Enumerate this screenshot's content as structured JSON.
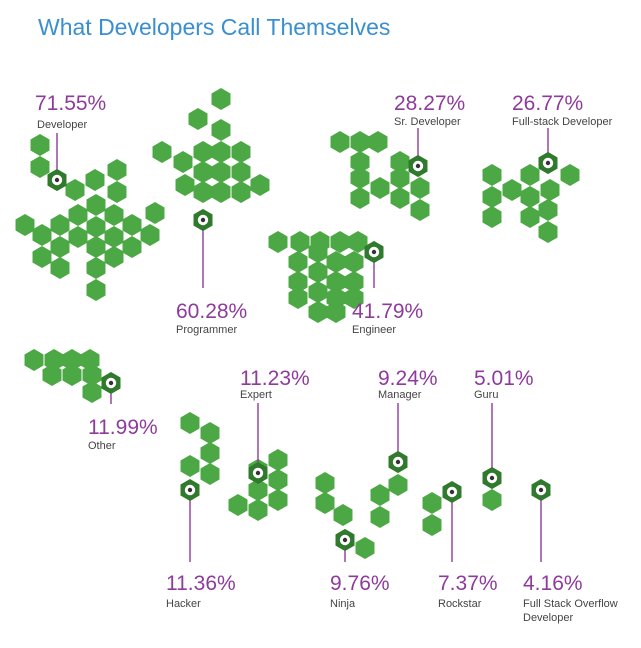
{
  "chart_data": {
    "type": "pictorial-hexagon-clusters",
    "title": "What Developers Call Themselves",
    "unit": "%",
    "series": [
      {
        "label": "Developer",
        "value": 71.55
      },
      {
        "label": "Programmer",
        "value": 60.28
      },
      {
        "label": "Sr. Developer",
        "value": 28.27
      },
      {
        "label": "Full-stack Developer",
        "value": 26.77
      },
      {
        "label": "Engineer",
        "value": 41.79
      },
      {
        "label": "Other",
        "value": 11.99
      },
      {
        "label": "Expert",
        "value": 11.23
      },
      {
        "label": "Manager",
        "value": 9.24
      },
      {
        "label": "Guru",
        "value": 5.01
      },
      {
        "label": "Hacker",
        "value": 11.36
      },
      {
        "label": "Ninja",
        "value": 9.76
      },
      {
        "label": "Rockstar",
        "value": 7.37
      },
      {
        "label": "Full Stack Overflow Developer",
        "value": 4.16
      }
    ]
  },
  "colors": {
    "hexagon": "#4ca845",
    "marker": "#2f7a2c",
    "label": "#8e3b9c",
    "title": "#3a8fd1",
    "category": "#444444"
  }
}
